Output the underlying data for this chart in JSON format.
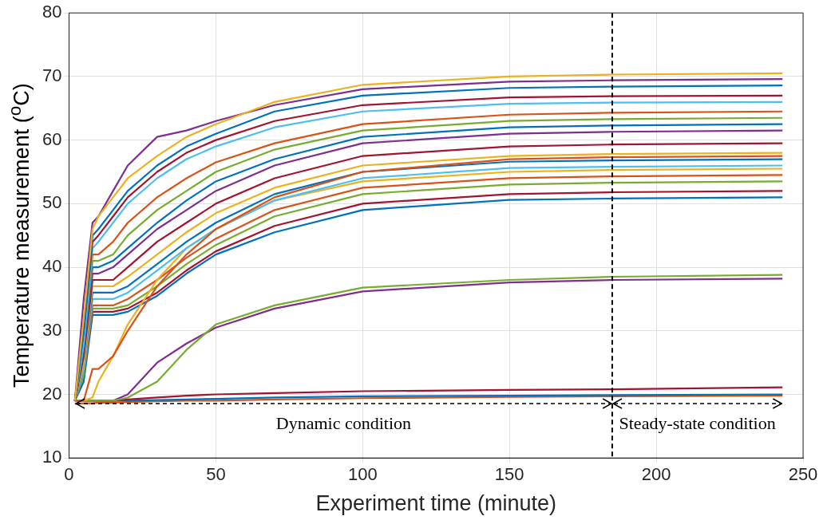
{
  "chart_data": {
    "type": "line",
    "xlabel": "Experiment time (minute)",
    "ylabel": "Temperature measurement ($^{o}$C)",
    "x": [
      2,
      5,
      8,
      10,
      15,
      20,
      30,
      40,
      50,
      70,
      100,
      150,
      185,
      243
    ],
    "xlim": [
      0,
      250
    ],
    "xticks": [
      0,
      50,
      100,
      150,
      200,
      250
    ],
    "ylim": [
      10,
      80
    ],
    "yticks": [
      10,
      20,
      30,
      40,
      50,
      60,
      70,
      80
    ],
    "grid": true,
    "legend": false,
    "marker": "none",
    "line_style": "solid",
    "ref_lines": [
      {
        "axis": "x",
        "value": 185,
        "line_style": "dashed",
        "color": "#000000"
      }
    ],
    "annotations": [
      "Dynamic condition",
      "Steady-state condition"
    ],
    "series": [
      {
        "color": "#edb120",
        "values": [
          19,
          32,
          46,
          48,
          51,
          54,
          57.5,
          60.5,
          62.5,
          66,
          68.7,
          70,
          70.3,
          70.5
        ]
      },
      {
        "color": "#7e2f8e",
        "values": [
          19,
          35,
          47,
          48,
          52,
          56,
          60.5,
          61.5,
          63,
          65.5,
          68,
          69.2,
          69.4,
          69.6
        ]
      },
      {
        "color": "#0072bd",
        "values": [
          19,
          30,
          45,
          46,
          49,
          52,
          56,
          59,
          61,
          64.5,
          67,
          68.2,
          68.4,
          68.6
        ]
      },
      {
        "color": "#a2142f",
        "values": [
          19,
          30,
          44,
          45,
          48,
          51,
          55,
          58,
          60,
          63,
          65.5,
          66.7,
          66.9,
          67
        ]
      },
      {
        "color": "#4dbeee",
        "values": [
          19,
          28,
          43,
          44,
          47,
          50,
          54,
          57,
          59,
          62,
          64.5,
          65.7,
          65.9,
          66
        ]
      },
      {
        "color": "#d95319",
        "values": [
          19,
          28,
          42,
          42,
          44,
          47,
          51,
          54,
          56.5,
          59.5,
          62.5,
          64,
          64.3,
          64.5
        ]
      },
      {
        "color": "#77ac30",
        "values": [
          19,
          28,
          41,
          41,
          42,
          45,
          49,
          52,
          55,
          58.5,
          61.5,
          63,
          63.3,
          63.5
        ]
      },
      {
        "color": "#0072bd",
        "values": [
          19,
          27,
          40,
          40,
          41,
          43,
          47,
          50.5,
          53.5,
          57,
          60.5,
          62,
          62.3,
          62.5
        ]
      },
      {
        "color": "#7e2f8e",
        "values": [
          19,
          27,
          39,
          39,
          40,
          42,
          46,
          49,
          52,
          56,
          59.5,
          61,
          61.3,
          61.5
        ]
      },
      {
        "color": "#a2142f",
        "values": [
          19,
          26,
          38,
          38,
          38,
          40,
          44,
          47,
          50,
          54,
          57.5,
          59,
          59.3,
          59.5
        ]
      },
      {
        "color": "#edb120",
        "values": [
          19,
          25,
          37,
          37,
          37,
          38.5,
          42,
          45.5,
          48.5,
          52.5,
          56,
          57.5,
          57.8,
          58
        ]
      },
      {
        "color": "#d95319",
        "values": [
          19,
          19,
          24,
          24,
          26,
          30,
          37,
          42,
          46,
          51,
          55,
          57,
          57.3,
          57.5
        ]
      },
      {
        "color": "#0072bd",
        "values": [
          19,
          25,
          36,
          36,
          36,
          37,
          40.5,
          44,
          47,
          51.5,
          55,
          56.6,
          56.8,
          57
        ]
      },
      {
        "color": "#4dbeee",
        "values": [
          19,
          24,
          35,
          35,
          35,
          36,
          39.5,
          43,
          46,
          50.5,
          54,
          55.6,
          55.8,
          56
        ]
      },
      {
        "color": "#edb120",
        "values": [
          19,
          19,
          19.5,
          22,
          26,
          31,
          38,
          43,
          46,
          50.5,
          53.5,
          55,
          55.3,
          55.5
        ]
      },
      {
        "color": "#d95319",
        "values": [
          19,
          24,
          34,
          34,
          34,
          35,
          38,
          41.5,
          44.5,
          49,
          52.5,
          54,
          54.3,
          54.5
        ]
      },
      {
        "color": "#77ac30",
        "values": [
          19,
          23,
          33.5,
          33.5,
          33.5,
          34,
          37,
          40.5,
          43.5,
          48,
          51.5,
          53,
          53.3,
          53.5
        ]
      },
      {
        "color": "#a2142f",
        "values": [
          19,
          23,
          33,
          33,
          33,
          33.5,
          36,
          39.5,
          42.5,
          46.5,
          50,
          51.5,
          51.8,
          52
        ]
      },
      {
        "color": "#0072bd",
        "values": [
          19,
          22,
          32.5,
          32.5,
          32.5,
          33,
          35.5,
          39,
          42,
          45.5,
          49,
          50.6,
          50.8,
          51
        ]
      },
      {
        "color": "#77ac30",
        "values": [
          19,
          19,
          19,
          19,
          19,
          19.5,
          22,
          27,
          31,
          34,
          36.8,
          38,
          38.5,
          38.8
        ]
      },
      {
        "color": "#7e2f8e",
        "values": [
          null,
          null,
          null,
          19,
          19,
          20,
          25,
          28,
          30.5,
          33.5,
          36.2,
          37.6,
          38,
          38.2
        ]
      },
      {
        "color": "#a2142f",
        "values": [
          19,
          19,
          19,
          19,
          19,
          19.2,
          19.5,
          19.8,
          20,
          20.2,
          20.5,
          20.7,
          20.8,
          21.1
        ]
      },
      {
        "color": "#0072bd",
        "values": [
          19,
          19,
          19,
          19,
          19,
          19,
          19.1,
          19.2,
          19.3,
          19.5,
          19.7,
          19.8,
          19.9,
          20
        ]
      },
      {
        "color": "#d95319",
        "values": [
          18.5,
          18.6,
          18.6,
          18.7,
          18.7,
          18.8,
          18.9,
          19,
          19,
          19.2,
          19.4,
          19.6,
          19.7,
          19.8
        ]
      }
    ]
  }
}
